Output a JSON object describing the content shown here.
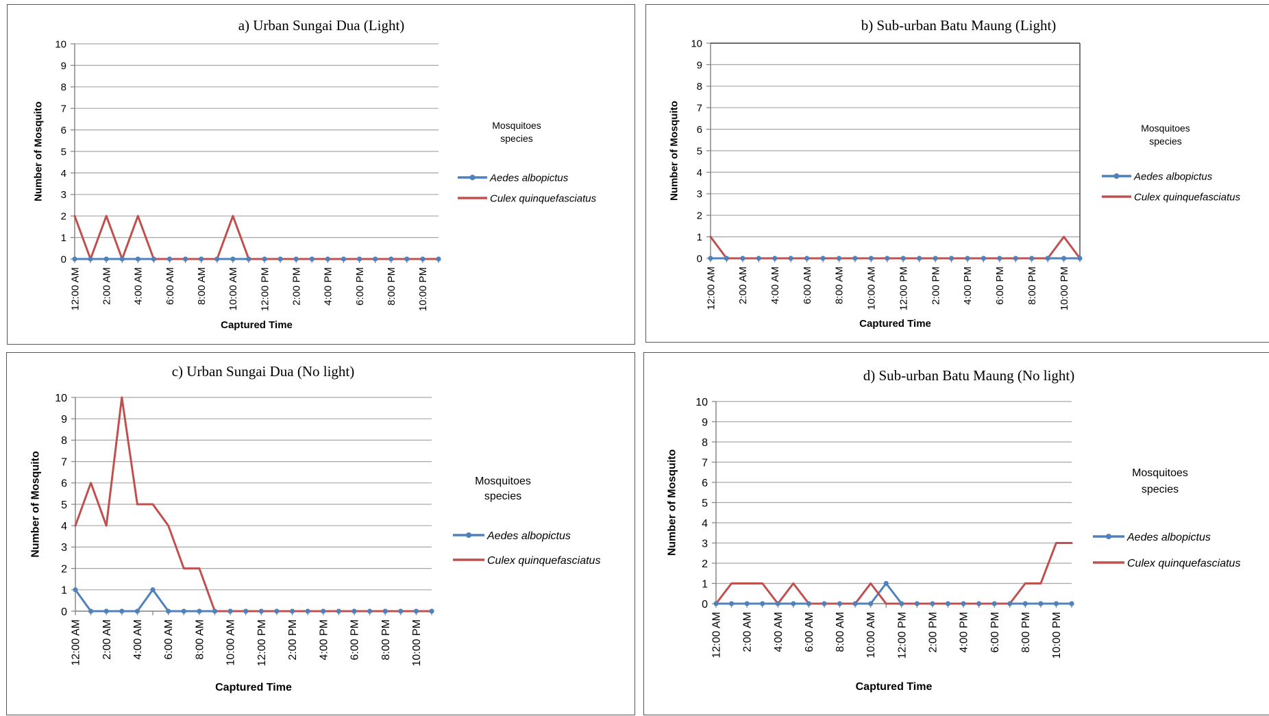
{
  "colors": {
    "aedes": "#4f81bd",
    "culex": "#c0504d",
    "grid": "#a6a6a6",
    "axis": "#808080"
  },
  "legend": {
    "title_line1": "Mosquitoes",
    "title_line2": "species",
    "series": [
      "Aedes albopictus",
      "Culex quinquefasciatus"
    ]
  },
  "chart_data": [
    {
      "type": "line",
      "title": "a) Urban Sungai Dua (Light)",
      "xlabel": "Captured Time",
      "ylabel": "Number of Mosquito",
      "ylim": [
        0,
        10
      ],
      "yticks": [
        "0",
        "1",
        "2",
        "3",
        "4",
        "5",
        "6",
        "7",
        "8",
        "9",
        "10"
      ],
      "x_tick_labels": [
        "12:00 AM",
        "2:00 AM",
        "4:00 AM",
        "6:00 AM",
        "8:00 AM",
        "10:00 AM",
        "12:00 PM",
        "2:00 PM",
        "4:00 PM",
        "6:00 PM",
        "8:00 PM",
        "10:00 PM"
      ],
      "x": [
        "12:00 AM",
        "1:00 AM",
        "2:00 AM",
        "3:00 AM",
        "4:00 AM",
        "5:00 AM",
        "6:00 AM",
        "7:00 AM",
        "8:00 AM",
        "9:00 AM",
        "10:00 AM",
        "11:00 AM",
        "12:00 PM",
        "1:00 PM",
        "2:00 PM",
        "3:00 PM",
        "4:00 PM",
        "5:00 PM",
        "6:00 PM",
        "7:00 PM",
        "8:00 PM",
        "9:00 PM",
        "10:00 PM",
        "11:00 PM"
      ],
      "series": [
        {
          "name": "Aedes albopictus",
          "values": [
            0,
            0,
            0,
            0,
            0,
            0,
            0,
            0,
            0,
            0,
            0,
            0,
            0,
            0,
            0,
            0,
            0,
            0,
            0,
            0,
            0,
            0,
            0,
            0
          ]
        },
        {
          "name": "Culex quinquefasciatus",
          "values": [
            2,
            0,
            2,
            0,
            2,
            0,
            0,
            0,
            0,
            0,
            2,
            0,
            0,
            0,
            0,
            0,
            0,
            0,
            0,
            0,
            0,
            0,
            0,
            0
          ]
        }
      ],
      "grid": true,
      "legend": "right"
    },
    {
      "type": "line",
      "title": "b) Sub-urban Batu Maung (Light)",
      "xlabel": "Captured Time",
      "ylabel": "Number of Mosquito",
      "ylim": [
        0,
        10
      ],
      "yticks": [
        "0",
        "1",
        "2",
        "3",
        "4",
        "5",
        "6",
        "7",
        "8",
        "9",
        "10"
      ],
      "x_tick_labels": [
        "12:00 AM",
        "2:00 AM",
        "4:00 AM",
        "6:00 AM",
        "8:00 AM",
        "10:00 AM",
        "12:00 PM",
        "2:00 PM",
        "4:00 PM",
        "6:00 PM",
        "8:00 PM",
        "10:00 PM"
      ],
      "x": [
        "12:00 AM",
        "1:00 AM",
        "2:00 AM",
        "3:00 AM",
        "4:00 AM",
        "5:00 AM",
        "6:00 AM",
        "7:00 AM",
        "8:00 AM",
        "9:00 AM",
        "10:00 AM",
        "11:00 AM",
        "12:00 PM",
        "1:00 PM",
        "2:00 PM",
        "3:00 PM",
        "4:00 PM",
        "5:00 PM",
        "6:00 PM",
        "7:00 PM",
        "8:00 PM",
        "9:00 PM",
        "10:00 PM",
        "11:00 PM"
      ],
      "series": [
        {
          "name": "Aedes albopictus",
          "values": [
            0,
            0,
            0,
            0,
            0,
            0,
            0,
            0,
            0,
            0,
            0,
            0,
            0,
            0,
            0,
            0,
            0,
            0,
            0,
            0,
            0,
            0,
            0,
            0
          ]
        },
        {
          "name": "Culex quinquefasciatus",
          "values": [
            1,
            0,
            0,
            0,
            0,
            0,
            0,
            0,
            0,
            0,
            0,
            0,
            0,
            0,
            0,
            0,
            0,
            0,
            0,
            0,
            0,
            0,
            1,
            0
          ]
        }
      ],
      "grid": true,
      "legend": "right"
    },
    {
      "type": "line",
      "title": "c) Urban Sungai Dua (No light)",
      "xlabel": "Captured Time",
      "ylabel": "Number of Mosquito",
      "ylim": [
        0,
        10
      ],
      "yticks": [
        "0",
        "1",
        "2",
        "3",
        "4",
        "5",
        "6",
        "7",
        "8",
        "9",
        "10"
      ],
      "x_tick_labels": [
        "12:00 AM",
        "2:00 AM",
        "4:00 AM",
        "6:00 AM",
        "8:00 AM",
        "10:00 AM",
        "12:00 PM",
        "2:00 PM",
        "4:00 PM",
        "6:00 PM",
        "8:00 PM",
        "10:00 PM"
      ],
      "x": [
        "12:00 AM",
        "1:00 AM",
        "2:00 AM",
        "3:00 AM",
        "4:00 AM",
        "5:00 AM",
        "6:00 AM",
        "7:00 AM",
        "8:00 AM",
        "9:00 AM",
        "10:00 AM",
        "11:00 AM",
        "12:00 PM",
        "1:00 PM",
        "2:00 PM",
        "3:00 PM",
        "4:00 PM",
        "5:00 PM",
        "6:00 PM",
        "7:00 PM",
        "8:00 PM",
        "9:00 PM",
        "10:00 PM",
        "11:00 PM"
      ],
      "series": [
        {
          "name": "Aedes albopictus",
          "values": [
            1,
            0,
            0,
            0,
            0,
            1,
            0,
            0,
            0,
            0,
            0,
            0,
            0,
            0,
            0,
            0,
            0,
            0,
            0,
            0,
            0,
            0,
            0,
            0
          ]
        },
        {
          "name": "Culex quinquefasciatus",
          "values": [
            4,
            6,
            4,
            10,
            5,
            5,
            4,
            2,
            2,
            0,
            0,
            0,
            0,
            0,
            0,
            0,
            0,
            0,
            0,
            0,
            0,
            0,
            0,
            0
          ]
        }
      ],
      "grid": true,
      "legend": "right"
    },
    {
      "type": "line",
      "title": "d) Sub-urban Batu Maung (No light)",
      "xlabel": "Captured Time",
      "ylabel": "Number of Mosquito",
      "ylim": [
        0,
        10
      ],
      "yticks": [
        "0",
        "1",
        "2",
        "3",
        "4",
        "5",
        "6",
        "7",
        "8",
        "9",
        "10"
      ],
      "x_tick_labels": [
        "12:00 AM",
        "2:00 AM",
        "4:00 AM",
        "6:00 AM",
        "8:00 AM",
        "10:00 AM",
        "12:00 PM",
        "2:00 PM",
        "4:00 PM",
        "6:00 PM",
        "8:00 PM",
        "10:00 PM"
      ],
      "x": [
        "12:00 AM",
        "1:00 AM",
        "2:00 AM",
        "3:00 AM",
        "4:00 AM",
        "5:00 AM",
        "6:00 AM",
        "7:00 AM",
        "8:00 AM",
        "9:00 AM",
        "10:00 AM",
        "11:00 AM",
        "12:00 PM",
        "1:00 PM",
        "2:00 PM",
        "3:00 PM",
        "4:00 PM",
        "5:00 PM",
        "6:00 PM",
        "7:00 PM",
        "8:00 PM",
        "9:00 PM",
        "10:00 PM",
        "11:00 PM"
      ],
      "series": [
        {
          "name": "Aedes albopictus",
          "values": [
            0,
            0,
            0,
            0,
            0,
            0,
            0,
            0,
            0,
            0,
            0,
            1,
            0,
            0,
            0,
            0,
            0,
            0,
            0,
            0,
            0,
            0,
            0,
            0
          ]
        },
        {
          "name": "Culex quinquefasciatus",
          "values": [
            0,
            1,
            1,
            1,
            0,
            1,
            0,
            0,
            0,
            0,
            1,
            0,
            0,
            0,
            0,
            0,
            0,
            0,
            0,
            0,
            1,
            1,
            3,
            3
          ]
        }
      ],
      "grid": true,
      "legend": "right"
    }
  ]
}
